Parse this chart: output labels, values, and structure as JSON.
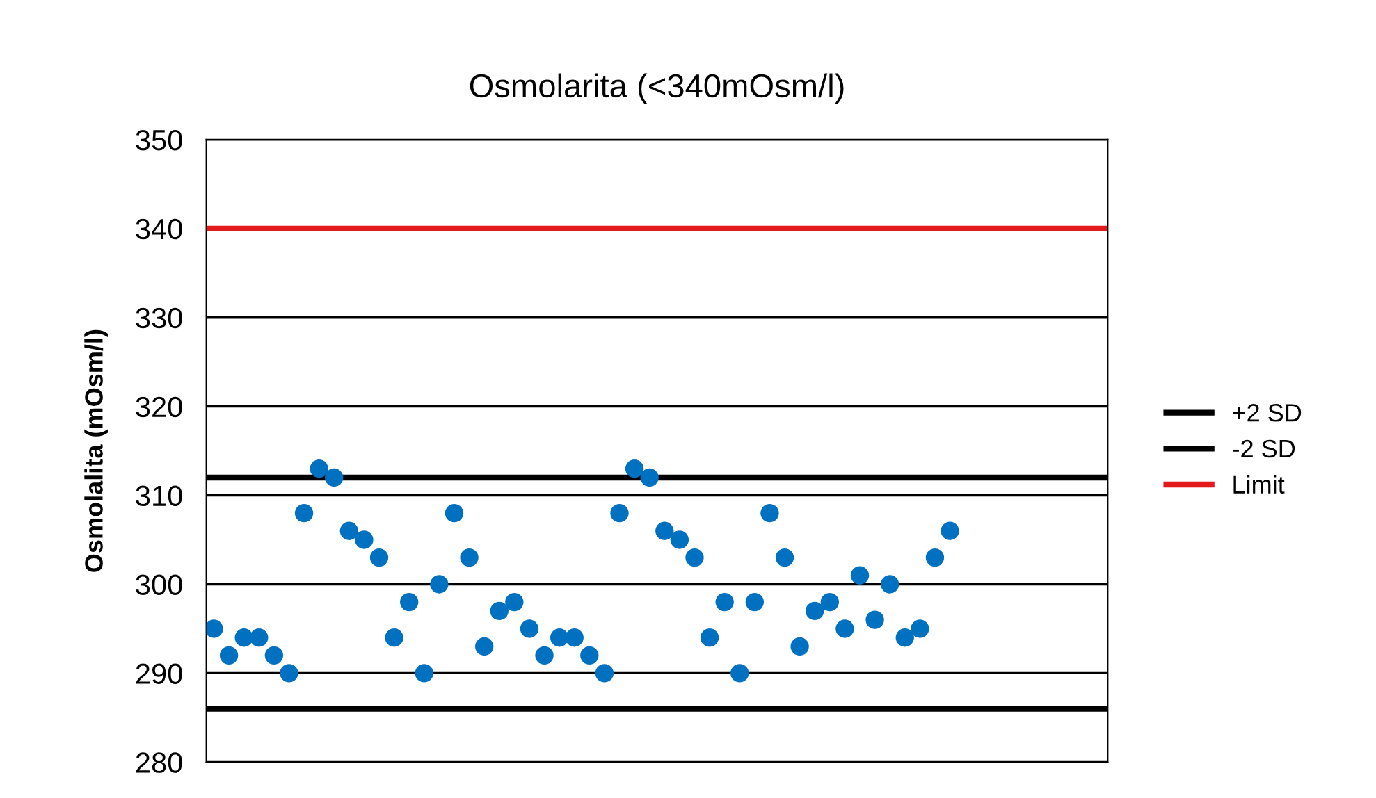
{
  "chart_data": {
    "type": "scatter",
    "title": "Osmolarita (<340mOsm/l)",
    "ylabel": "Osmolalita (mOsm/l)",
    "categories": [
      null,
      null,
      null,
      null,
      null,
      null,
      null,
      null,
      null,
      null,
      null,
      null,
      null,
      null,
      null,
      null,
      null,
      null,
      null,
      null,
      null,
      null,
      null,
      null,
      null,
      null,
      null,
      null,
      null,
      null,
      null,
      null,
      null,
      null,
      null,
      null,
      null,
      null,
      null,
      null,
      null,
      null,
      null,
      null,
      null,
      null,
      null,
      null,
      null,
      null,
      null,
      null,
      null,
      null,
      null,
      null,
      null,
      null,
      null,
      null
    ],
    "series": [
      {
        "color": "#0070c0",
        "values": [
          295,
          292,
          294,
          294,
          292,
          290,
          308,
          313,
          312,
          306,
          305,
          303,
          294,
          298,
          290,
          300,
          308,
          303,
          293,
          297,
          298,
          295,
          292,
          294,
          294,
          292,
          290,
          308,
          313,
          312,
          306,
          305,
          303,
          294,
          298,
          290,
          298,
          308,
          303,
          293,
          297,
          298,
          295,
          301,
          296,
          300,
          294,
          295,
          303,
          306,
          null,
          null,
          null,
          null,
          null,
          null,
          null,
          null,
          null,
          null
        ]
      }
    ],
    "ref_lines": [
      {
        "axis": "y",
        "value": 312,
        "label": "+2 SD",
        "color": "#000000"
      },
      {
        "axis": "y",
        "value": 286,
        "label": "-2 SD",
        "color": "#000000"
      },
      {
        "axis": "y",
        "value": 340,
        "label": "Limit",
        "color": "#e31a1c"
      }
    ],
    "ylim": [
      280,
      350
    ],
    "yticks": [
      280,
      290,
      300,
      310,
      320,
      330,
      340,
      350
    ],
    "grid": "y",
    "legend": "right",
    "marker": "circle",
    "tick_labels": "y"
  }
}
